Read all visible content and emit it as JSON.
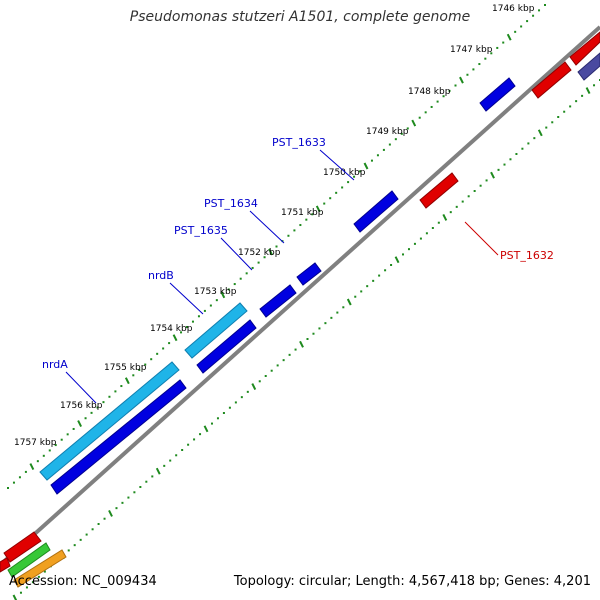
{
  "title": "Pseudomonas stutzeri A1501, complete genome",
  "accession": "Accession: NC_009434",
  "summary": "Topology: circular; Length: 4,567,418 bp; Genes: 4,201",
  "kbp_labels": [
    "1746 kbp",
    "1747 kbp",
    "1748 kbp",
    "1749 kbp",
    "1750 kbp",
    "1751 kbp",
    "1752 kbp",
    "1753 kbp",
    "1754 kbp",
    "1755 kbp",
    "1756 kbp",
    "1757 kbp"
  ],
  "gene_labels": [
    {
      "name": "PST_1633",
      "color": "#0000cc"
    },
    {
      "name": "PST_1634",
      "color": "#0000cc"
    },
    {
      "name": "PST_1635",
      "color": "#0000cc"
    },
    {
      "name": "nrdB",
      "color": "#0000cc"
    },
    {
      "name": "nrdA",
      "color": "#0000cc"
    },
    {
      "name": "PST_1632",
      "color": "#cc0000"
    }
  ],
  "colors": {
    "backbone": "#7f7f7f",
    "ticks": "#1e8a1e",
    "blue_gene": "#0000e0",
    "cyan_gene": "#1fb4e8",
    "red_gene": "#e00000",
    "purple_gene": "#4a4aa0"
  }
}
